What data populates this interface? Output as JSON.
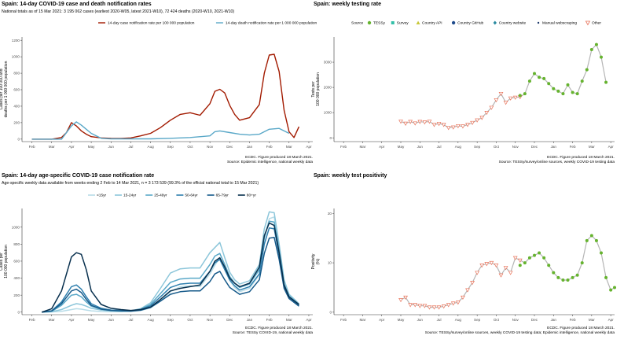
{
  "chart_data": [
    {
      "type": "line",
      "title": "Spain: 14-day COVID-19 case and death notification rates",
      "subtitle": "National totals as of 15 Mar 2021: 3 195 062 cases (earliest 2020-W05, latest 2021-W10), 72 424 deaths (2020-W10, 2021-W10)",
      "ylabel": "Cases per 100 000 and\ndeaths per 1 000 000 population",
      "x_ticks": [
        "Feb",
        "Mar",
        "Apr",
        "May",
        "Jun",
        "Jul",
        "Aug",
        "Sep",
        "Oct",
        "Nov",
        "Dec",
        "Jan",
        "Feb",
        "Mar",
        "Apr"
      ],
      "y_ticks": [
        0,
        200,
        400,
        600,
        800,
        1000,
        1200
      ],
      "ylim": [
        -30,
        1240
      ],
      "xlim": [
        -0.5,
        14.2
      ],
      "caption": [
        "ECDC. Figure produced 18 March 2021.",
        "Source: Epidemic intelligence, national weekly data"
      ],
      "series": [
        {
          "name": "14-day case notification rate per 100 000 population",
          "color": "#a21a00",
          "x": [
            0,
            0.5,
            1,
            1.5,
            1.75,
            2,
            2.25,
            2.5,
            2.75,
            3,
            3.5,
            4,
            4.5,
            5,
            5.5,
            6,
            6.5,
            7,
            7.5,
            8,
            8.5,
            9,
            9.25,
            9.5,
            9.75,
            10,
            10.25,
            10.5,
            11,
            11.5,
            11.75,
            12,
            12.25,
            12.5,
            12.75,
            13,
            13.25,
            13.5
          ],
          "y": [
            0,
            0,
            0,
            20,
            80,
            200,
            160,
            100,
            60,
            30,
            15,
            10,
            8,
            15,
            40,
            70,
            140,
            230,
            300,
            320,
            290,
            430,
            580,
            605,
            560,
            410,
            300,
            230,
            260,
            420,
            800,
            1020,
            1030,
            820,
            350,
            90,
            20,
            150
          ]
        },
        {
          "name": "14-day death notification rate per 1 000 000 population",
          "color": "#5aa8c8",
          "x": [
            0,
            1,
            1.5,
            2,
            2.25,
            2.5,
            2.75,
            3,
            3.5,
            4,
            5,
            6,
            7,
            8,
            9,
            9.25,
            9.5,
            10,
            10.5,
            11,
            11.5,
            12,
            12.5,
            13
          ],
          "y": [
            0,
            0,
            0,
            160,
            210,
            170,
            120,
            70,
            10,
            3,
            3,
            3,
            10,
            20,
            40,
            90,
            100,
            80,
            60,
            50,
            60,
            120,
            130,
            70
          ]
        }
      ]
    },
    {
      "type": "scatter",
      "title": "Spain: weekly testing rate",
      "ylabel": "Tests per\n100 000 population",
      "legend_title": "Source",
      "legend": [
        {
          "label": "TESSy",
          "marker": "circle",
          "color": "#65b32e"
        },
        {
          "label": "Survey",
          "marker": "square",
          "color": "#33bfa8"
        },
        {
          "label": "Country API",
          "marker": "triangle",
          "color": "#c8c83a"
        },
        {
          "label": "Country GitHub",
          "marker": "circle",
          "color": "#1e4b8c"
        },
        {
          "label": "Country website",
          "marker": "diamond",
          "color": "#2a8aa0"
        },
        {
          "label": "Manual webscraping",
          "marker": "dot",
          "color": "#1e3a6c"
        },
        {
          "label": "Other",
          "marker": "open-triangle-down",
          "color": "#e8735a"
        }
      ],
      "x_ticks": [
        "Feb",
        "Mar",
        "Apr",
        "May",
        "Jun",
        "Jul",
        "Aug",
        "Sep",
        "Oct",
        "Nov",
        "Dec",
        "Jan",
        "Feb",
        "Mar",
        "Apr"
      ],
      "y_ticks": [
        0,
        1000,
        2000,
        3000
      ],
      "ylim": [
        -150,
        4000
      ],
      "xlim": [
        -0.5,
        14.2
      ],
      "caption": [
        "ECDC. Figure produced 18 March 2021.",
        "Source: TESSy/survey/online sources, weekly COVID-19 testing data"
      ],
      "points_other": {
        "x": [
          3,
          3.25,
          3.5,
          3.75,
          4,
          4.25,
          4.5,
          4.75,
          5,
          5.25,
          5.5,
          5.75,
          6,
          6.25,
          6.5,
          6.75,
          7,
          7.25,
          7.5,
          7.75,
          8,
          8.25,
          8.5,
          8.75,
          9,
          9.25
        ],
        "y": [
          650,
          570,
          640,
          580,
          640,
          620,
          650,
          520,
          560,
          520,
          400,
          420,
          470,
          460,
          520,
          600,
          700,
          800,
          1000,
          1200,
          1500,
          1750,
          1400,
          1570,
          1600,
          1620
        ]
      },
      "points_tessy": {
        "x": [
          9.25,
          9.5,
          9.75,
          10,
          10.25,
          10.5,
          10.75,
          11,
          11.25,
          11.5,
          11.75,
          12,
          12.25,
          12.5,
          12.75,
          13,
          13.25,
          13.5,
          13.75
        ],
        "y": [
          1680,
          1750,
          2250,
          2550,
          2400,
          2350,
          2150,
          1950,
          1850,
          1750,
          2100,
          1800,
          1750,
          2250,
          2700,
          3500,
          3700,
          3200,
          2200
        ]
      }
    },
    {
      "type": "line",
      "title": "Spain: 14-day age-specific COVID-19 case notification rate",
      "subtitle": "Age-specific weekly data available from weeks ending 2 Feb to 14 Mar 2021, n = 3 173 539 (99.3% of the official national total to 15 Mar 2021)",
      "ylabel": "Cases per\n100 000 population",
      "x_ticks": [
        "Feb",
        "Mar",
        "Apr",
        "May",
        "Jun",
        "Jul",
        "Aug",
        "Sep",
        "Oct",
        "Nov",
        "Dec",
        "Jan",
        "Feb",
        "Mar",
        "Apr"
      ],
      "y_ticks": [
        0,
        200,
        400,
        600,
        800,
        1000
      ],
      "ylim": [
        -30,
        1220
      ],
      "xlim": [
        -0.5,
        14.2
      ],
      "caption": [
        "ECDC. Figure produced 18 March 2021.",
        "Source: TESSy COVID-19, national weekly data"
      ],
      "x": [
        0.5,
        1,
        1.5,
        2,
        2.25,
        2.5,
        2.75,
        3,
        3.5,
        4,
        4.5,
        5,
        5.5,
        6,
        6.5,
        7,
        7.5,
        8,
        8.5,
        9,
        9.25,
        9.5,
        9.75,
        10,
        10.25,
        10.5,
        11,
        11.5,
        11.75,
        12,
        12.25,
        12.5,
        12.75,
        13,
        13.5
      ],
      "series": [
        {
          "name": "<15yr",
          "color": "#b8dce8",
          "values": [
            0,
            2,
            10,
            30,
            40,
            35,
            25,
            15,
            8,
            5,
            5,
            8,
            20,
            50,
            130,
            240,
            300,
            310,
            300,
            450,
            550,
            640,
            500,
            370,
            290,
            240,
            280,
            440,
            860,
            1100,
            1120,
            760,
            330,
            180,
            90
          ]
        },
        {
          "name": "15-24yr",
          "color": "#8cc6da",
          "values": [
            0,
            5,
            30,
            80,
            100,
            90,
            70,
            45,
            25,
            15,
            10,
            15,
            40,
            110,
            280,
            460,
            510,
            520,
            520,
            700,
            760,
            820,
            640,
            470,
            380,
            330,
            370,
            560,
            980,
            1180,
            1170,
            800,
            380,
            210,
            100
          ]
        },
        {
          "name": "25-49yr",
          "color": "#5aa8c8",
          "values": [
            0,
            10,
            80,
            200,
            210,
            180,
            120,
            70,
            35,
            20,
            15,
            15,
            35,
            90,
            220,
            350,
            390,
            400,
            400,
            560,
            660,
            690,
            560,
            420,
            340,
            290,
            330,
            500,
            880,
            1070,
            1060,
            740,
            330,
            190,
            90
          ]
        },
        {
          "name": "50-64yr",
          "color": "#2e7fae",
          "values": [
            0,
            15,
            120,
            300,
            320,
            270,
            180,
            100,
            45,
            25,
            20,
            15,
            30,
            75,
            180,
            290,
            330,
            340,
            340,
            480,
            580,
            620,
            500,
            380,
            310,
            260,
            300,
            450,
            800,
            990,
            980,
            680,
            300,
            170,
            80
          ]
        },
        {
          "name": "65-79yr",
          "color": "#165a8a",
          "values": [
            0,
            15,
            100,
            250,
            270,
            230,
            150,
            80,
            35,
            20,
            15,
            12,
            22,
            55,
            130,
            210,
            240,
            250,
            250,
            360,
            450,
            480,
            380,
            290,
            250,
            210,
            240,
            380,
            690,
            870,
            880,
            620,
            280,
            160,
            70
          ]
        },
        {
          "name": "80+yr",
          "color": "#08304e",
          "values": [
            0,
            40,
            250,
            650,
            700,
            680,
            500,
            250,
            90,
            45,
            30,
            20,
            30,
            60,
            150,
            250,
            280,
            300,
            320,
            480,
            600,
            640,
            530,
            400,
            340,
            300,
            340,
            530,
            900,
            1050,
            1020,
            700,
            320,
            180,
            90
          ]
        }
      ]
    },
    {
      "type": "scatter",
      "title": "Spain: weekly test positivity",
      "ylabel": "Positivity\n(%)",
      "x_ticks": [
        "Feb",
        "Mar",
        "Apr",
        "May",
        "Jun",
        "Jul",
        "Aug",
        "Sep",
        "Oct",
        "Nov",
        "Dec",
        "Jan",
        "Feb",
        "Mar",
        "Apr"
      ],
      "y_ticks": [
        0,
        10,
        20
      ],
      "ylim": [
        -0.5,
        21
      ],
      "xlim": [
        -0.5,
        14.2
      ],
      "caption": [
        "ECDC. Figure produced 18 March 2021.",
        "Source: TESSy/survey/online sources, weekly COVID-19 testing data; Epidemic intelligence, national weekly data"
      ],
      "points_other": {
        "x": [
          3,
          3.25,
          3.5,
          3.75,
          4,
          4.25,
          4.5,
          4.75,
          5,
          5.25,
          5.5,
          5.75,
          6,
          6.25,
          6.5,
          6.75,
          7,
          7.25,
          7.5,
          7.75,
          8,
          8.25,
          8.5,
          8.75,
          9,
          9.25
        ],
        "y": [
          2.5,
          3,
          1.5,
          1.5,
          1.3,
          1.3,
          1,
          1,
          1,
          1.2,
          1.5,
          1.8,
          2,
          3,
          4.5,
          6,
          8,
          9.5,
          9.8,
          10,
          9.5,
          7.5,
          9,
          8,
          11,
          10.5
        ]
      },
      "points_tessy": {
        "x": [
          9.25,
          9.5,
          9.75,
          10,
          10.25,
          10.5,
          10.75,
          11,
          11.25,
          11.5,
          11.75,
          12,
          12.25,
          12.5,
          12.75,
          13,
          13.25,
          13.5,
          13.75,
          14,
          14.2
        ],
        "y": [
          9.5,
          10,
          11,
          11.5,
          12,
          11,
          9.5,
          8,
          7,
          6.5,
          6.5,
          7,
          7.5,
          10,
          14.5,
          15.5,
          14.5,
          12,
          7,
          4.5,
          5
        ]
      }
    }
  ]
}
